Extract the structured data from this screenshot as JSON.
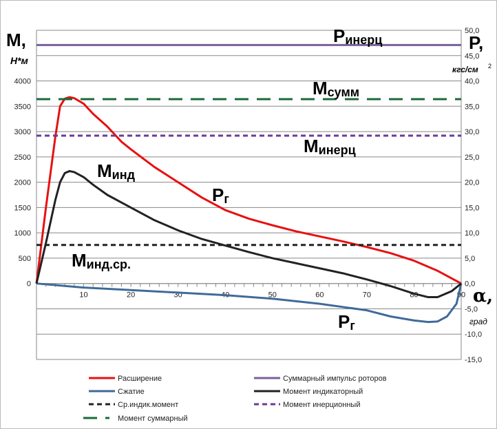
{
  "chart_data": {
    "type": "line",
    "left_axis": {
      "title": "M,",
      "unit": "Н*м",
      "ticks": [
        "0",
        "500",
        "1000",
        "1500",
        "2000",
        "2500",
        "3000",
        "3500",
        "4000"
      ],
      "range": [
        -1500,
        5000
      ]
    },
    "right_axis": {
      "title": "P,",
      "unit": "кгс/см",
      "unit_sup": "2",
      "ticks": [
        "-15,0",
        "-10,0",
        "-5,0",
        "0,0",
        "5,0",
        "10,0",
        "15,0",
        "20,0",
        "25,0",
        "30,0",
        "35,0",
        "40,0",
        "45,0",
        "50,0"
      ],
      "range": [
        -15,
        50
      ]
    },
    "x_axis": {
      "title": "α,",
      "unit": "град",
      "ticks": [
        "10",
        "20",
        "30",
        "40",
        "50",
        "60",
        "70",
        "80",
        "90"
      ],
      "range": [
        0,
        90
      ]
    },
    "grid": true,
    "legend_placement": "bottom",
    "series": [
      {
        "name": "Расширение",
        "axis": "right",
        "color": "#e81010",
        "style": "solid",
        "x": [
          0,
          2,
          4,
          5,
          6,
          7,
          8,
          10,
          12,
          15,
          18,
          20,
          25,
          30,
          35,
          40,
          45,
          50,
          55,
          60,
          65,
          70,
          75,
          80,
          85,
          90
        ],
        "y": [
          0,
          15,
          29,
          35,
          36.5,
          36.8,
          36.6,
          35.5,
          33.5,
          31,
          28,
          26.5,
          23,
          20,
          17,
          14.5,
          12.8,
          11.5,
          10.3,
          9.3,
          8.3,
          7.2,
          6,
          4.5,
          2.5,
          0
        ]
      },
      {
        "name": "Сжатие",
        "axis": "right",
        "color": "#3f6a9a",
        "style": "solid",
        "x": [
          0,
          10,
          20,
          30,
          40,
          50,
          60,
          70,
          75,
          80,
          83,
          85,
          87,
          89,
          90
        ],
        "y": [
          0,
          -0.8,
          -1.3,
          -1.8,
          -2.3,
          -3,
          -4,
          -5.3,
          -6.5,
          -7.3,
          -7.6,
          -7.5,
          -6.5,
          -4,
          0
        ]
      },
      {
        "name": "Ср.индик.момент",
        "axis": "left",
        "color": "#222222",
        "style": "dash",
        "constant": 760
      },
      {
        "name": "Момент суммарный",
        "axis": "left",
        "color": "#1a6a3a",
        "style": "longdash",
        "constant": 3640
      },
      {
        "name": "Суммарный импульс роторов",
        "axis": "right",
        "color": "#7a5f9a",
        "style": "solid",
        "constant": 47.1
      },
      {
        "name": "Момент индикаторный",
        "axis": "left",
        "color": "#222222",
        "style": "solid",
        "x": [
          0,
          2,
          4,
          5,
          6,
          7,
          8,
          10,
          12,
          15,
          18,
          20,
          25,
          30,
          35,
          40,
          45,
          50,
          55,
          60,
          65,
          70,
          75,
          80,
          83,
          85,
          88,
          90
        ],
        "y": [
          0,
          800,
          1650,
          2000,
          2180,
          2220,
          2200,
          2100,
          1950,
          1750,
          1600,
          1500,
          1250,
          1050,
          880,
          750,
          620,
          500,
          400,
          300,
          200,
          80,
          -50,
          -200,
          -270,
          -270,
          -150,
          0
        ]
      },
      {
        "name": "Момент инерционный",
        "axis": "left",
        "color": "#6a3a9a",
        "style": "dash",
        "constant": 2920
      }
    ],
    "annotations": [
      {
        "main": "P",
        "sub": "инерц"
      },
      {
        "main": "M",
        "sub": "сумм"
      },
      {
        "main": "M",
        "sub": "инерц"
      },
      {
        "main": "M",
        "sub": "инд"
      },
      {
        "main": "P",
        "sub": "г"
      },
      {
        "main": "M",
        "sub": "инд.ср."
      },
      {
        "main": "P",
        "sub": "г"
      }
    ]
  }
}
